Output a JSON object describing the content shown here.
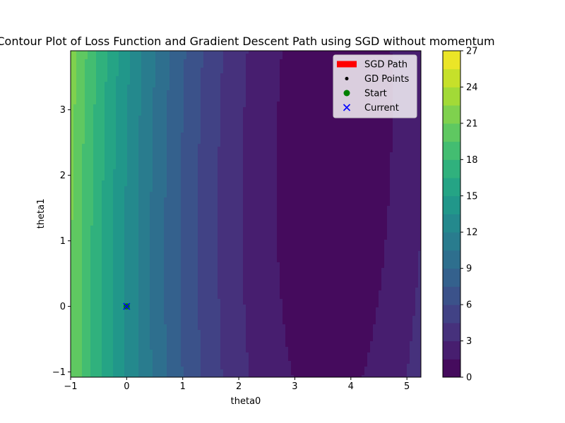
{
  "chart_data": {
    "type": "contour",
    "title": "Contour Plot of Loss Function and Gradient Descent Path using SGD without momentum",
    "xlabel": "theta0",
    "ylabel": "theta1",
    "xlim": [
      -1,
      5.25
    ],
    "ylim": [
      -1.08,
      3.9
    ],
    "xticks": [
      -1,
      0,
      1,
      2,
      3,
      4,
      5
    ],
    "yticks": [
      -1,
      0,
      1,
      2,
      3
    ],
    "colorbar": {
      "range": [
        0,
        27
      ],
      "ticks": [
        0,
        3,
        6,
        9,
        12,
        15,
        18,
        21,
        24,
        27
      ],
      "levels": [
        0,
        1.5,
        3,
        4.5,
        6,
        7.5,
        9,
        10.5,
        12,
        13.5,
        15,
        16.5,
        18,
        19.5,
        21,
        22.5,
        24,
        25.5,
        27
      ],
      "colormap": "viridis"
    },
    "loss_surface": {
      "minimum": [
        3.7,
        2.5
      ],
      "minimum_value": 0.5,
      "coef_theta0": 0.95,
      "coef_theta1": 0.05,
      "coef_cross": -0.06
    },
    "series": [
      {
        "name": "SGD Path",
        "kind": "arrow",
        "color": "#ff0000",
        "points": [
          [
            0,
            0
          ]
        ]
      },
      {
        "name": "GD Points",
        "kind": "scatter",
        "color": "#000000",
        "points": [
          [
            0,
            0
          ]
        ]
      },
      {
        "name": "Start",
        "kind": "scatter",
        "color": "#008000",
        "points": [
          [
            0,
            0
          ]
        ]
      },
      {
        "name": "Current",
        "kind": "x-marker",
        "color": "#0000ff",
        "points": [
          [
            0,
            0
          ]
        ]
      }
    ],
    "legend": {
      "position": "top-right",
      "entries": [
        "SGD Path",
        "GD Points",
        "Start",
        "Current"
      ]
    },
    "grid": false
  }
}
